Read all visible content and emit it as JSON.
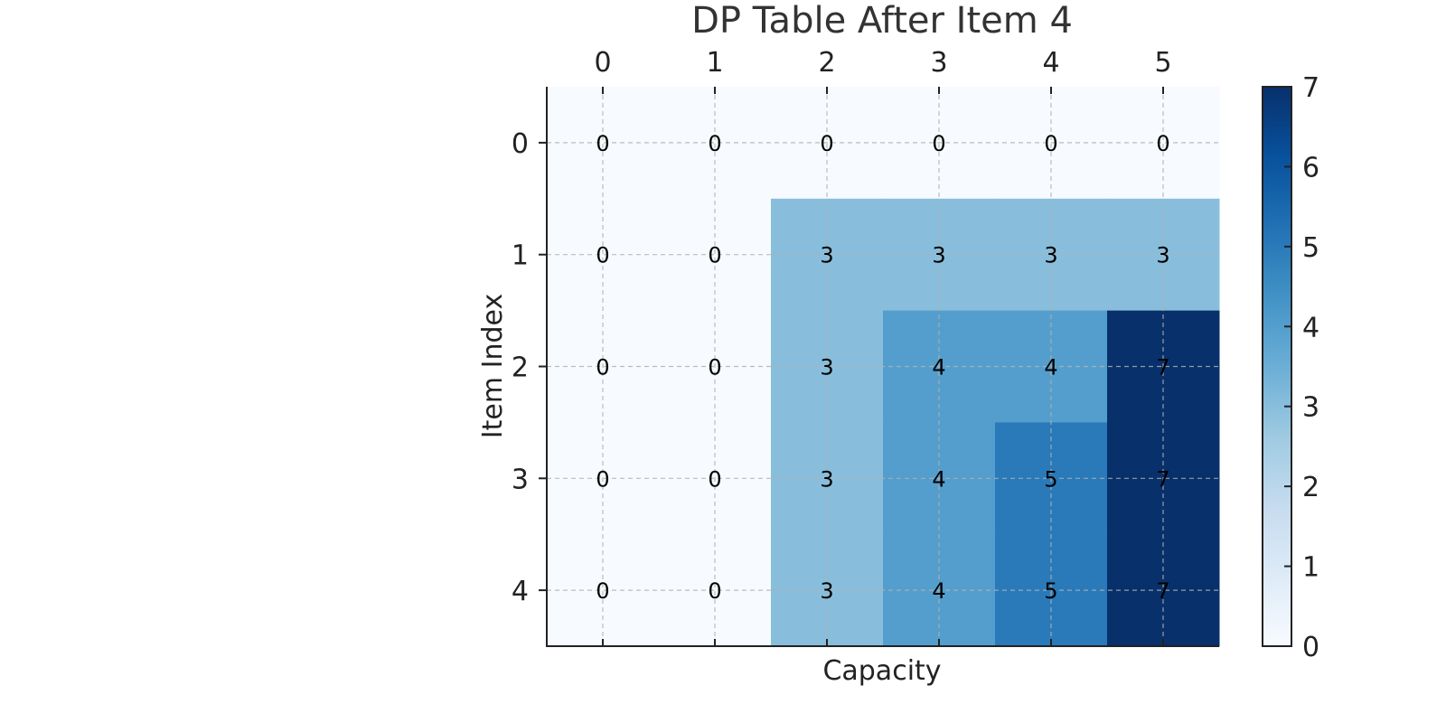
{
  "chart_data": {
    "type": "heatmap",
    "title": "DP Table After Item 4",
    "xlabel": "Capacity",
    "ylabel": "Item Index",
    "x_ticks": [
      "0",
      "1",
      "2",
      "3",
      "4",
      "5"
    ],
    "y_ticks": [
      "0",
      "1",
      "2",
      "3",
      "4"
    ],
    "values": [
      [
        0,
        0,
        0,
        0,
        0,
        0
      ],
      [
        0,
        0,
        3,
        3,
        3,
        3
      ],
      [
        0,
        0,
        3,
        4,
        4,
        7
      ],
      [
        0,
        0,
        3,
        4,
        5,
        7
      ],
      [
        0,
        0,
        3,
        4,
        5,
        7
      ]
    ],
    "colorbar": {
      "ticks": [
        "0",
        "1",
        "2",
        "3",
        "4",
        "5",
        "6",
        "7"
      ],
      "range": [
        0,
        7
      ],
      "colormap": "Blues"
    },
    "grid": true,
    "x_axis_position": "top"
  }
}
